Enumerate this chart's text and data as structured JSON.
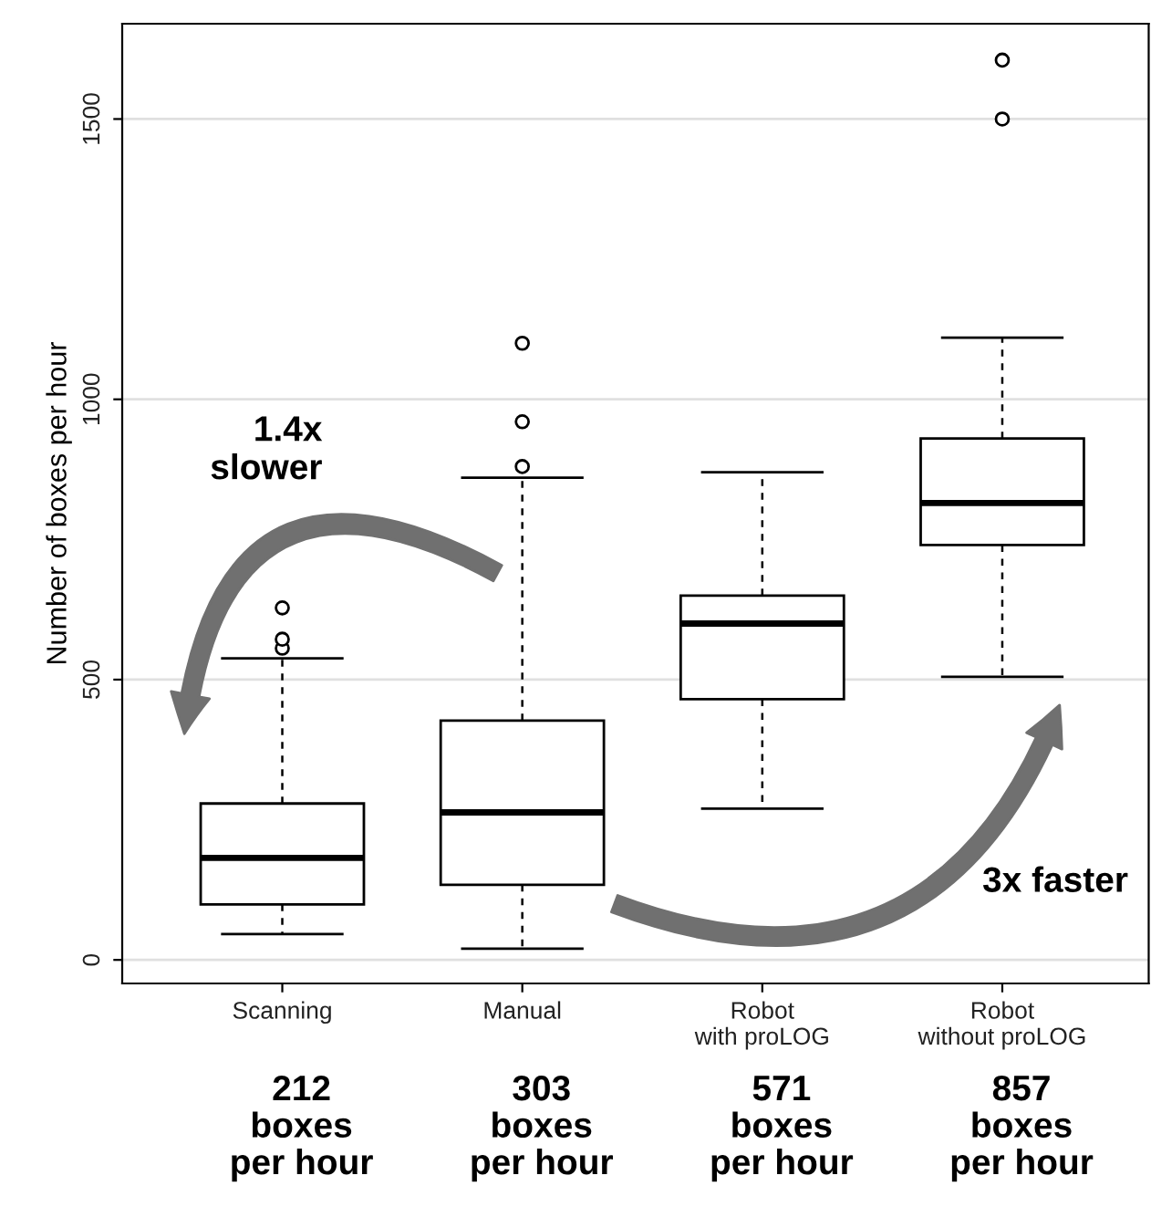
{
  "chart_data": {
    "type": "box",
    "ylabel": "Number of boxes per hour",
    "categories": [
      "Scanning",
      "Manual",
      "Robot\nwith proLOG",
      "Robot\nwithout proLOG"
    ],
    "boxes": [
      {
        "low": 46,
        "q1": 99,
        "median": 182,
        "q3": 279,
        "high": 538,
        "outliers": [
          556,
          572,
          628
        ]
      },
      {
        "low": 20,
        "q1": 134,
        "median": 263,
        "q3": 427,
        "high": 860,
        "outliers": [
          880,
          960,
          1100
        ]
      },
      {
        "low": 270,
        "q1": 465,
        "median": 600,
        "q3": 650,
        "high": 870
      },
      {
        "low": 505,
        "q1": 740,
        "median": 815,
        "q3": 930,
        "high": 1110,
        "outliers": [
          1500,
          1605
        ]
      }
    ],
    "ylim": [
      -42,
      1670
    ],
    "yticks": [
      0,
      500,
      1000,
      1500
    ],
    "grid": "y",
    "annotations": [
      "212\nboxes\nper hour",
      "303\nboxes\nper hour",
      "571\nboxes\nper hour",
      "857\nboxes\nper hour",
      "1.4x\nslower",
      "3x faster"
    ]
  }
}
